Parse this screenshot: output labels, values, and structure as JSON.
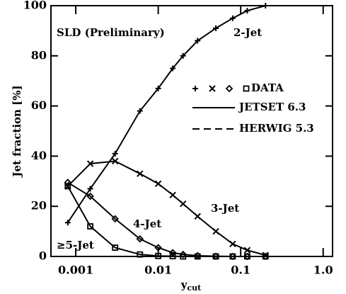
{
  "chart_data": {
    "type": "line",
    "ylabel": "Jet fraction [%]",
    "xlabel": {
      "main": "y",
      "sub": "cut"
    },
    "annotations": [
      "SLD (Preliminary)",
      "DATA",
      "JETSET 6.3",
      "HERWIG 5.3"
    ],
    "x": [
      0.0008,
      0.0015,
      0.003,
      0.006,
      0.01,
      0.015,
      0.02,
      0.03,
      0.05,
      0.08,
      0.12,
      0.2
    ],
    "series": [
      {
        "name": "2-Jet",
        "color": "#000000",
        "marker": "plus",
        "values": [
          13.5,
          27,
          41,
          58,
          67,
          75,
          80,
          86,
          91,
          95,
          98,
          100
        ]
      },
      {
        "name": "3-Jet",
        "color": "#000000",
        "marker": "x",
        "values": [
          28,
          37,
          38,
          33,
          29,
          24.5,
          21,
          16,
          10,
          5,
          2.5,
          0.5
        ]
      },
      {
        "name": "4-Jet",
        "color": "#000000",
        "marker": "diamond",
        "values": [
          29.5,
          24,
          15,
          7,
          3.5,
          1.5,
          0.8,
          0.3,
          0.1,
          0,
          0,
          0
        ]
      },
      {
        "name": "≥5-Jet",
        "color": "#000000",
        "marker": "square",
        "values": [
          28,
          12,
          3.5,
          0.8,
          0.2,
          0.1,
          0,
          0,
          0,
          0,
          0,
          0
        ]
      }
    ],
    "xscale": "log",
    "xlim": [
      0.0005,
      1.3
    ],
    "xticks": [
      0.001,
      0.01,
      0.1,
      {
        "value": 1,
        "label": "1.0"
      }
    ],
    "ylim": [
      0,
      100
    ],
    "yticks": [
      0,
      20,
      40,
      60,
      80,
      100
    ],
    "grid": false
  }
}
